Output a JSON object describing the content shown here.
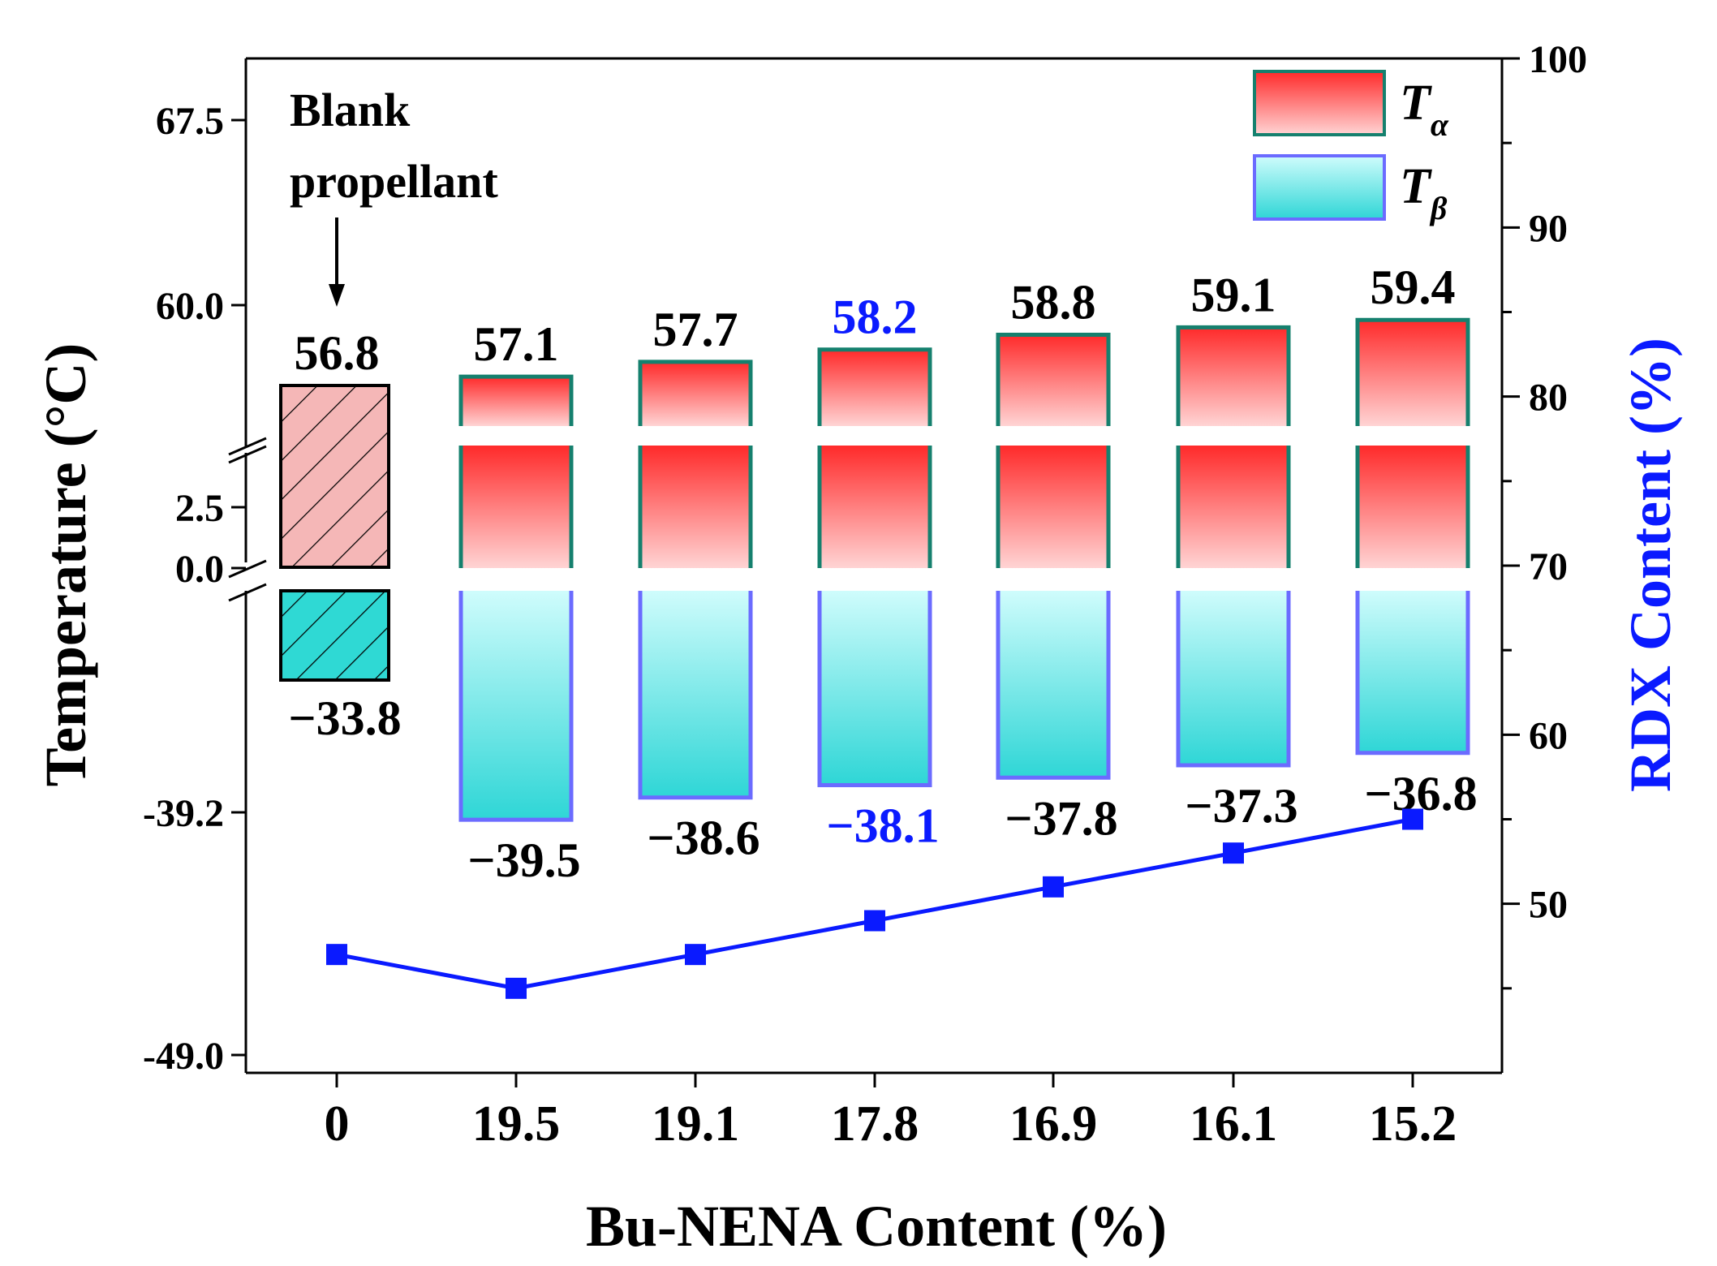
{
  "chart_data": {
    "type": "bar",
    "categories": [
      "0",
      "19.5",
      "19.1",
      "17.8",
      "16.9",
      "16.1",
      "15.2"
    ],
    "series": [
      {
        "name": "Tα",
        "symbol": "T",
        "subscript": "α",
        "values": [
          56.8,
          57.1,
          57.7,
          58.2,
          58.8,
          59.1,
          59.4
        ],
        "labels": [
          "56.8",
          "57.1",
          "57.7",
          "58.2",
          "58.8",
          "59.1",
          "59.4"
        ]
      },
      {
        "name": "Tβ",
        "symbol": "T",
        "subscript": "β",
        "values": [
          -33.8,
          -39.5,
          -38.6,
          -38.1,
          -37.8,
          -37.3,
          -36.8
        ],
        "labels": [
          "−33.8",
          "−39.5",
          "−38.6",
          "−38.1",
          "−37.8",
          "−37.3",
          "−36.8"
        ]
      },
      {
        "name": "RDX Content",
        "type": "line",
        "axis": "right",
        "values": [
          47,
          45,
          47,
          49,
          51,
          53,
          55
        ]
      }
    ],
    "highlight_index": 3,
    "xlabel": "Bu-NENA Content (%)",
    "ylabel": "Temperature (°C)",
    "y2label": "RDX Content (%)",
    "yticks": [
      "67.5",
      "60.0",
      "2.5",
      "0.0",
      "-39.2",
      "-49.0"
    ],
    "y2ticks": [
      "100",
      "90",
      "80",
      "70",
      "60",
      "50"
    ],
    "y2lim": [
      40,
      100
    ],
    "annotation": {
      "line1": "Blank",
      "line2": "propellant"
    },
    "colors": {
      "alpha_top": "#ff2a2a",
      "alpha_bottom": "#ffd4d4",
      "alpha_border": "#15806e",
      "beta_top": "#cffcfc",
      "beta_bottom": "#2ed6d6",
      "beta_border": "#6b6bff",
      "line": "#0a1aff",
      "highlight_text": "#0a1aff",
      "blank_alpha_fill": "#f5b7b7",
      "blank_beta_fill": "#2fd9d4"
    }
  }
}
